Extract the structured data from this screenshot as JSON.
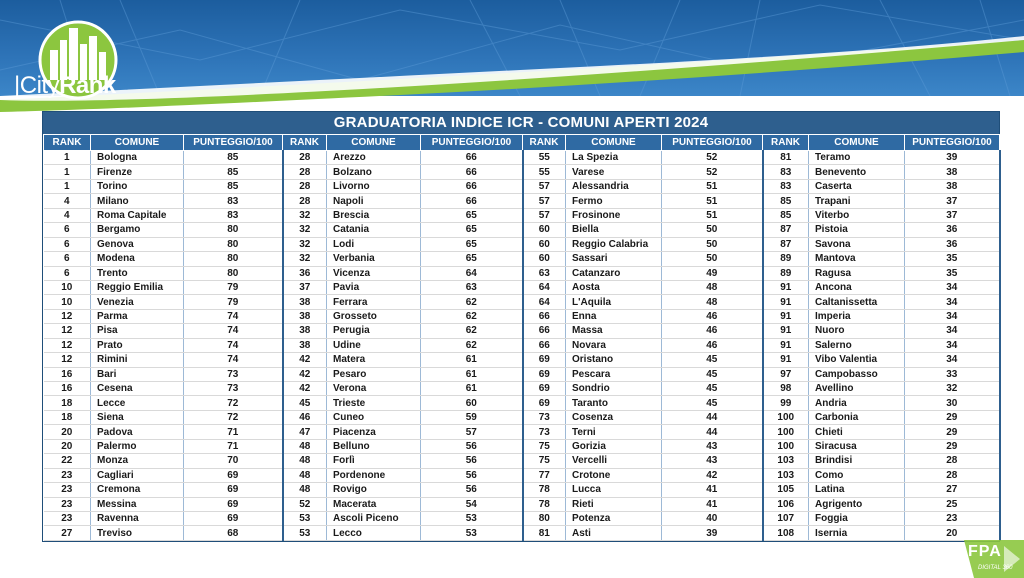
{
  "logo": {
    "bar": "|",
    "city": "City",
    "rank": "Rank"
  },
  "title": "GRADUATORIA INDICE ICR - COMUNI APERTI 2024",
  "headers": {
    "rank": "RANK",
    "comune": "COMUNE",
    "punteggio": "PUNTEGGIO/100"
  },
  "footer": {
    "brand": "FPA",
    "sub": "DIGITAL 360"
  },
  "colors": {
    "header_blue": "#2f6aa3",
    "title_blue": "#2e5f8e",
    "banner_blue": "#2e74b8",
    "green": "#8cc63f"
  },
  "rows": [
    [
      [
        "1",
        "Bologna",
        "85"
      ],
      [
        "28",
        "Arezzo",
        "66"
      ],
      [
        "55",
        "La Spezia",
        "52"
      ],
      [
        "81",
        "Teramo",
        "39"
      ]
    ],
    [
      [
        "1",
        "Firenze",
        "85"
      ],
      [
        "28",
        "Bolzano",
        "66"
      ],
      [
        "55",
        "Varese",
        "52"
      ],
      [
        "83",
        "Benevento",
        "38"
      ]
    ],
    [
      [
        "1",
        "Torino",
        "85"
      ],
      [
        "28",
        "Livorno",
        "66"
      ],
      [
        "57",
        "Alessandria",
        "51"
      ],
      [
        "83",
        "Caserta",
        "38"
      ]
    ],
    [
      [
        "4",
        "Milano",
        "83"
      ],
      [
        "28",
        "Napoli",
        "66"
      ],
      [
        "57",
        "Fermo",
        "51"
      ],
      [
        "85",
        "Trapani",
        "37"
      ]
    ],
    [
      [
        "4",
        "Roma Capitale",
        "83"
      ],
      [
        "32",
        "Brescia",
        "65"
      ],
      [
        "57",
        "Frosinone",
        "51"
      ],
      [
        "85",
        "Viterbo",
        "37"
      ]
    ],
    [
      [
        "6",
        "Bergamo",
        "80"
      ],
      [
        "32",
        "Catania",
        "65"
      ],
      [
        "60",
        "Biella",
        "50"
      ],
      [
        "87",
        "Pistoia",
        "36"
      ]
    ],
    [
      [
        "6",
        "Genova",
        "80"
      ],
      [
        "32",
        "Lodi",
        "65"
      ],
      [
        "60",
        "Reggio Calabria",
        "50"
      ],
      [
        "87",
        "Savona",
        "36"
      ]
    ],
    [
      [
        "6",
        "Modena",
        "80"
      ],
      [
        "32",
        "Verbania",
        "65"
      ],
      [
        "60",
        "Sassari",
        "50"
      ],
      [
        "89",
        "Mantova",
        "35"
      ]
    ],
    [
      [
        "6",
        "Trento",
        "80"
      ],
      [
        "36",
        "Vicenza",
        "64"
      ],
      [
        "63",
        "Catanzaro",
        "49"
      ],
      [
        "89",
        "Ragusa",
        "35"
      ]
    ],
    [
      [
        "10",
        "Reggio Emilia",
        "79"
      ],
      [
        "37",
        "Pavia",
        "63"
      ],
      [
        "64",
        "Aosta",
        "48"
      ],
      [
        "91",
        "Ancona",
        "34"
      ]
    ],
    [
      [
        "10",
        "Venezia",
        "79"
      ],
      [
        "38",
        "Ferrara",
        "62"
      ],
      [
        "64",
        "L'Aquila",
        "48"
      ],
      [
        "91",
        "Caltanissetta",
        "34"
      ]
    ],
    [
      [
        "12",
        "Parma",
        "74"
      ],
      [
        "38",
        "Grosseto",
        "62"
      ],
      [
        "66",
        "Enna",
        "46"
      ],
      [
        "91",
        "Imperia",
        "34"
      ]
    ],
    [
      [
        "12",
        "Pisa",
        "74"
      ],
      [
        "38",
        "Perugia",
        "62"
      ],
      [
        "66",
        "Massa",
        "46"
      ],
      [
        "91",
        "Nuoro",
        "34"
      ]
    ],
    [
      [
        "12",
        "Prato",
        "74"
      ],
      [
        "38",
        "Udine",
        "62"
      ],
      [
        "66",
        "Novara",
        "46"
      ],
      [
        "91",
        "Salerno",
        "34"
      ]
    ],
    [
      [
        "12",
        "Rimini",
        "74"
      ],
      [
        "42",
        "Matera",
        "61"
      ],
      [
        "69",
        "Oristano",
        "45"
      ],
      [
        "91",
        "Vibo Valentia",
        "34"
      ]
    ],
    [
      [
        "16",
        "Bari",
        "73"
      ],
      [
        "42",
        "Pesaro",
        "61"
      ],
      [
        "69",
        "Pescara",
        "45"
      ],
      [
        "97",
        "Campobasso",
        "33"
      ]
    ],
    [
      [
        "16",
        "Cesena",
        "73"
      ],
      [
        "42",
        "Verona",
        "61"
      ],
      [
        "69",
        "Sondrio",
        "45"
      ],
      [
        "98",
        "Avellino",
        "32"
      ]
    ],
    [
      [
        "18",
        "Lecce",
        "72"
      ],
      [
        "45",
        "Trieste",
        "60"
      ],
      [
        "69",
        "Taranto",
        "45"
      ],
      [
        "99",
        "Andria",
        "30"
      ]
    ],
    [
      [
        "18",
        "Siena",
        "72"
      ],
      [
        "46",
        "Cuneo",
        "59"
      ],
      [
        "73",
        "Cosenza",
        "44"
      ],
      [
        "100",
        "Carbonia",
        "29"
      ]
    ],
    [
      [
        "20",
        "Padova",
        "71"
      ],
      [
        "47",
        "Piacenza",
        "57"
      ],
      [
        "73",
        "Terni",
        "44"
      ],
      [
        "100",
        "Chieti",
        "29"
      ]
    ],
    [
      [
        "20",
        "Palermo",
        "71"
      ],
      [
        "48",
        "Belluno",
        "56"
      ],
      [
        "75",
        "Gorizia",
        "43"
      ],
      [
        "100",
        "Siracusa",
        "29"
      ]
    ],
    [
      [
        "22",
        "Monza",
        "70"
      ],
      [
        "48",
        "Forlì",
        "56"
      ],
      [
        "75",
        "Vercelli",
        "43"
      ],
      [
        "103",
        "Brindisi",
        "28"
      ]
    ],
    [
      [
        "23",
        "Cagliari",
        "69"
      ],
      [
        "48",
        "Pordenone",
        "56"
      ],
      [
        "77",
        "Crotone",
        "42"
      ],
      [
        "103",
        "Como",
        "28"
      ]
    ],
    [
      [
        "23",
        "Cremona",
        "69"
      ],
      [
        "48",
        "Rovigo",
        "56"
      ],
      [
        "78",
        "Lucca",
        "41"
      ],
      [
        "105",
        "Latina",
        "27"
      ]
    ],
    [
      [
        "23",
        "Messina",
        "69"
      ],
      [
        "52",
        "Macerata",
        "54"
      ],
      [
        "78",
        "Rieti",
        "41"
      ],
      [
        "106",
        "Agrigento",
        "25"
      ]
    ],
    [
      [
        "23",
        "Ravenna",
        "69"
      ],
      [
        "53",
        "Ascoli Piceno",
        "53"
      ],
      [
        "80",
        "Potenza",
        "40"
      ],
      [
        "107",
        "Foggia",
        "23"
      ]
    ],
    [
      [
        "27",
        "Treviso",
        "68"
      ],
      [
        "53",
        "Lecco",
        "53"
      ],
      [
        "81",
        "Asti",
        "39"
      ],
      [
        "108",
        "Isernia",
        "20"
      ]
    ]
  ]
}
